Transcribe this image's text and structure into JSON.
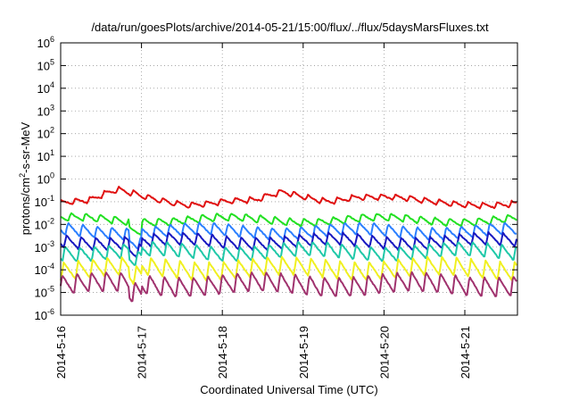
{
  "chart_data": {
    "type": "line",
    "title": "/data/run/goesPlots/archive/2014-05-21/15:00/flux/../flux/5daysMarsFluxes.txt",
    "xlabel": "Coordinated Universal Time (UTC)",
    "ylabel": "protons/cm²-s-sr-MeV",
    "yscale": "log",
    "ylim": [
      1e-06,
      1000000.0
    ],
    "xlim": [
      "2014-05-16 00:00",
      "2014-05-21 15:00"
    ],
    "grid": true,
    "legend": "none",
    "x_ticks": [
      "2014-5-16",
      "2014-5-17",
      "2014-5-18",
      "2014-5-19",
      "2014-5-20",
      "2014-5-21"
    ],
    "y_ticks": [
      {
        "base": "10",
        "exp": "6"
      },
      {
        "base": "10",
        "exp": "5"
      },
      {
        "base": "10",
        "exp": "4"
      },
      {
        "base": "10",
        "exp": "3"
      },
      {
        "base": "10",
        "exp": "2"
      },
      {
        "base": "10",
        "exp": "1"
      },
      {
        "base": "10",
        "exp": "0"
      },
      {
        "base": "10",
        "exp": "-1"
      },
      {
        "base": "10",
        "exp": "-2"
      },
      {
        "base": "10",
        "exp": "-3"
      },
      {
        "base": "10",
        "exp": "-4"
      },
      {
        "base": "10",
        "exp": "-5"
      },
      {
        "base": "10",
        "exp": "-6"
      }
    ],
    "series": [
      {
        "color": "#e01010",
        "baseline_exp": -1.05,
        "amplitude": 0.25,
        "period_days": 0.18,
        "phase": 0.0,
        "bumps": [
          {
            "day": 0.7,
            "height": 0.5
          },
          {
            "day": 2.75,
            "height": 0.45
          },
          {
            "day": 3.65,
            "height": 0.3
          }
        ]
      },
      {
        "color": "#22e022",
        "baseline_exp": -1.8,
        "amplitude": 0.35,
        "period_days": 0.18,
        "phase": 0.3
      },
      {
        "color": "#2b7fff",
        "baseline_exp": -2.3,
        "amplitude": 0.55,
        "period_days": 0.18,
        "phase": 0.5
      },
      {
        "color": "#1818c0",
        "baseline_exp": -2.75,
        "amplitude": 0.55,
        "period_days": 0.18,
        "phase": 0.6
      },
      {
        "color": "#1fc8a8",
        "baseline_exp": -3.2,
        "amplitude": 0.65,
        "period_days": 0.18,
        "phase": 0.7
      },
      {
        "color": "#f0f020",
        "baseline_exp": -3.95,
        "amplitude": 0.8,
        "period_days": 0.18,
        "phase": 0.8
      },
      {
        "color": "#a0326e",
        "baseline_exp": -4.65,
        "amplitude": 0.9,
        "period_days": 0.18,
        "phase": 0.9
      }
    ]
  }
}
